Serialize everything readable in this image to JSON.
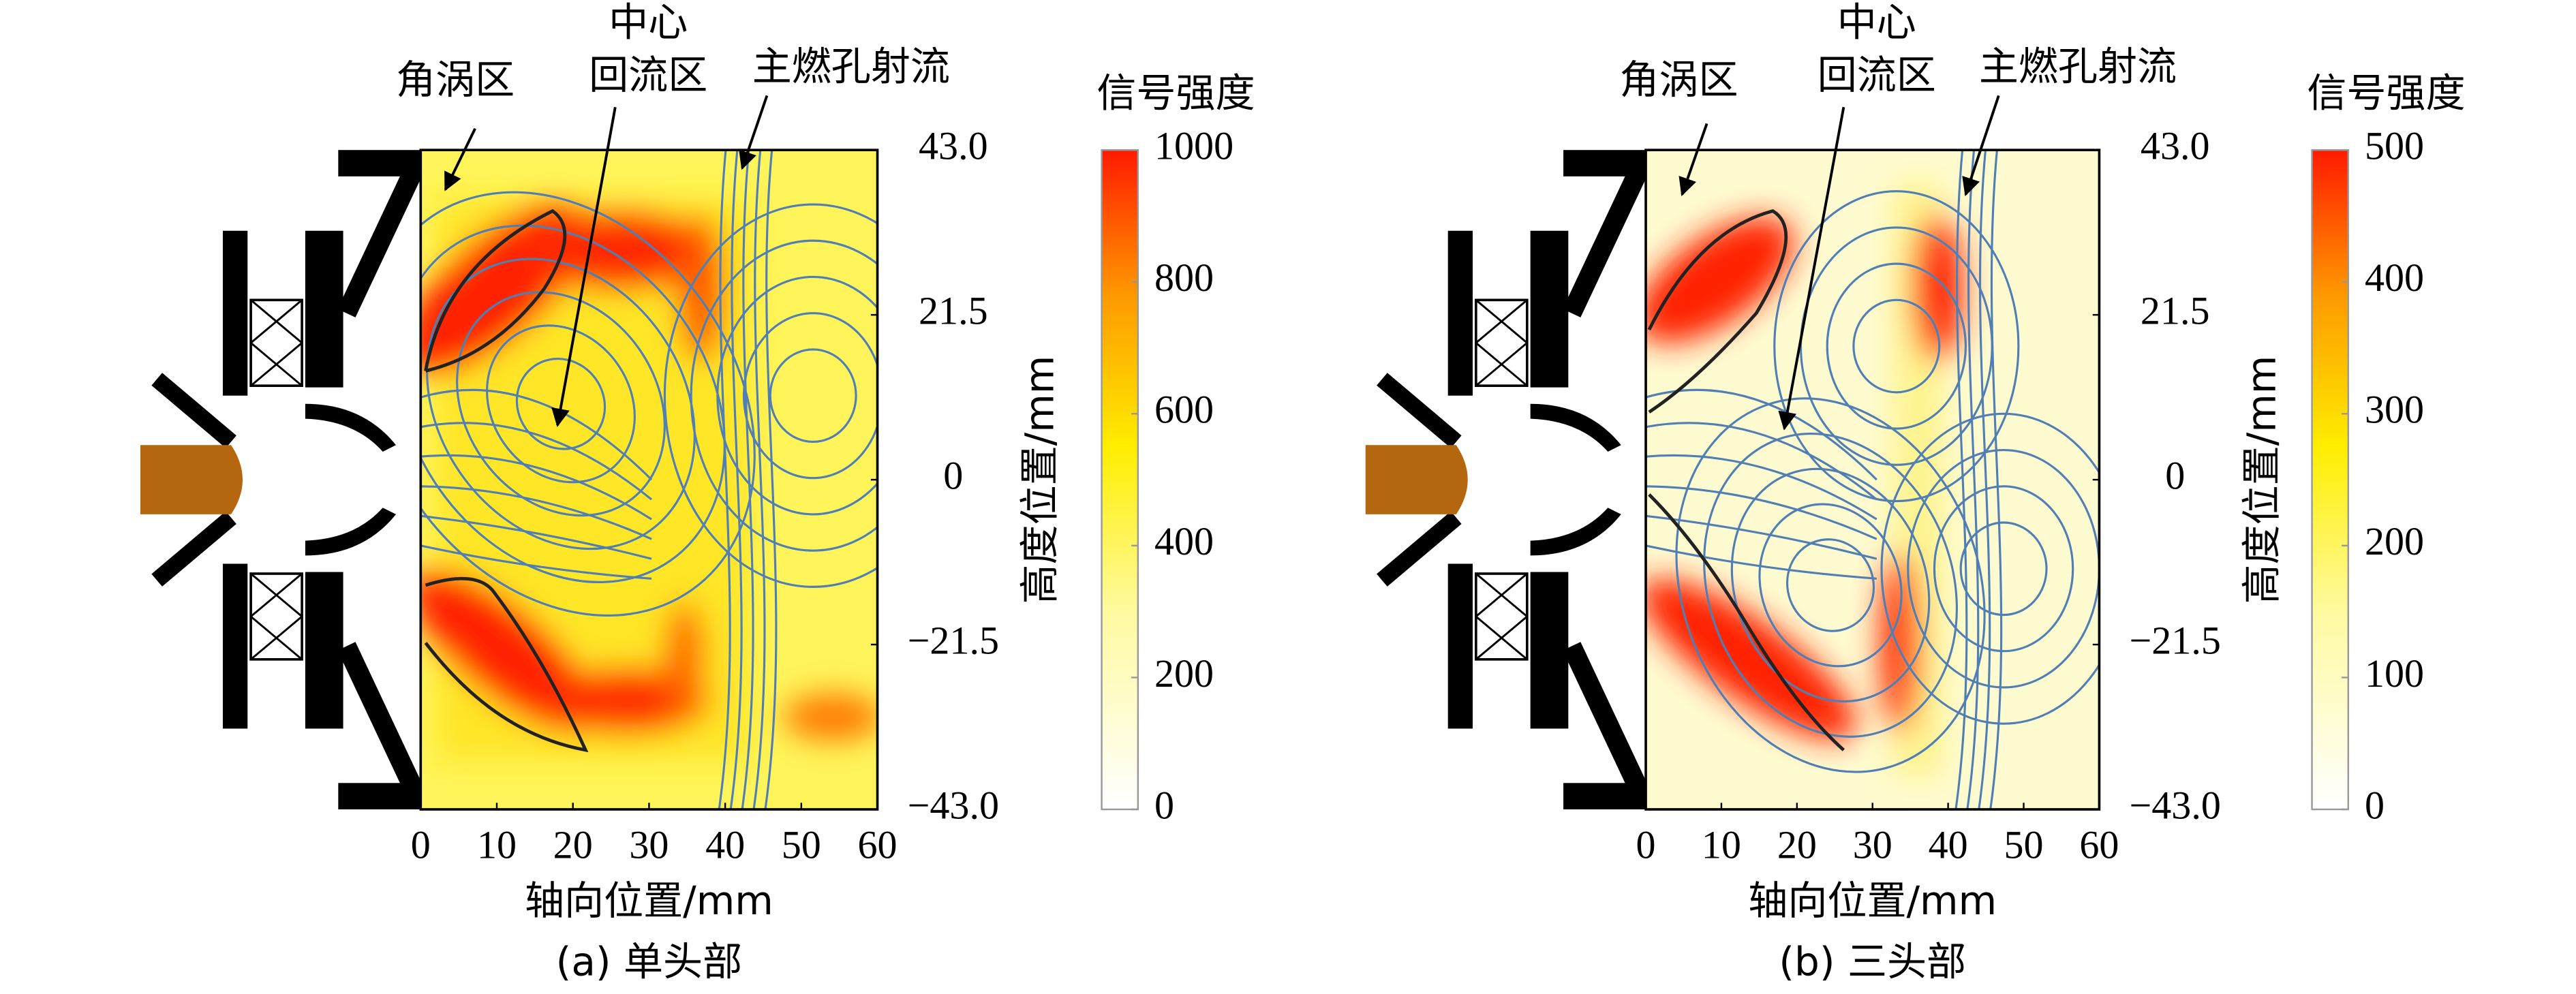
{
  "chart_data": [
    {
      "type": "heatmap",
      "annotations": [
        "角涡区",
        "中心",
        "回流区",
        "主燃孔射流"
      ],
      "xlabel": "轴向位置/mm",
      "ylabel": "高度位置/mm",
      "colorbar_label": "信号强度",
      "caption": "(a) 单头部",
      "xlim": [
        0,
        60
      ],
      "xticks": [
        0,
        10,
        20,
        30,
        40,
        50,
        60
      ],
      "ylim": [
        -43,
        43
      ],
      "yticks": [
        {
          "value": -43,
          "label": "−43.0"
        },
        {
          "value": -21.5,
          "label": "−21.5"
        },
        0,
        21.5,
        {
          "value": 43,
          "label": "43.0"
        }
      ],
      "clim": [
        0,
        1000
      ],
      "cticks": [
        0,
        200,
        400,
        600,
        800,
        1000
      ]
    },
    {
      "type": "heatmap",
      "annotations": [
        "角涡区",
        "中心",
        "回流区",
        "主燃孔射流"
      ],
      "xlabel": "轴向位置/mm",
      "ylabel": "高度位置/mm",
      "colorbar_label": "信号强度",
      "caption": "(b) 三头部",
      "xlim": [
        0,
        60
      ],
      "xticks": [
        0,
        10,
        20,
        30,
        40,
        50,
        60
      ],
      "ylim": [
        -43,
        43
      ],
      "yticks": [
        {
          "value": -43,
          "label": "−43.0"
        },
        {
          "value": -21.5,
          "label": "−21.5"
        },
        0,
        21.5,
        {
          "value": 43,
          "label": "43.0"
        }
      ],
      "clim": [
        0,
        500
      ],
      "cticks": [
        0,
        100,
        200,
        300,
        400,
        500
      ]
    }
  ]
}
